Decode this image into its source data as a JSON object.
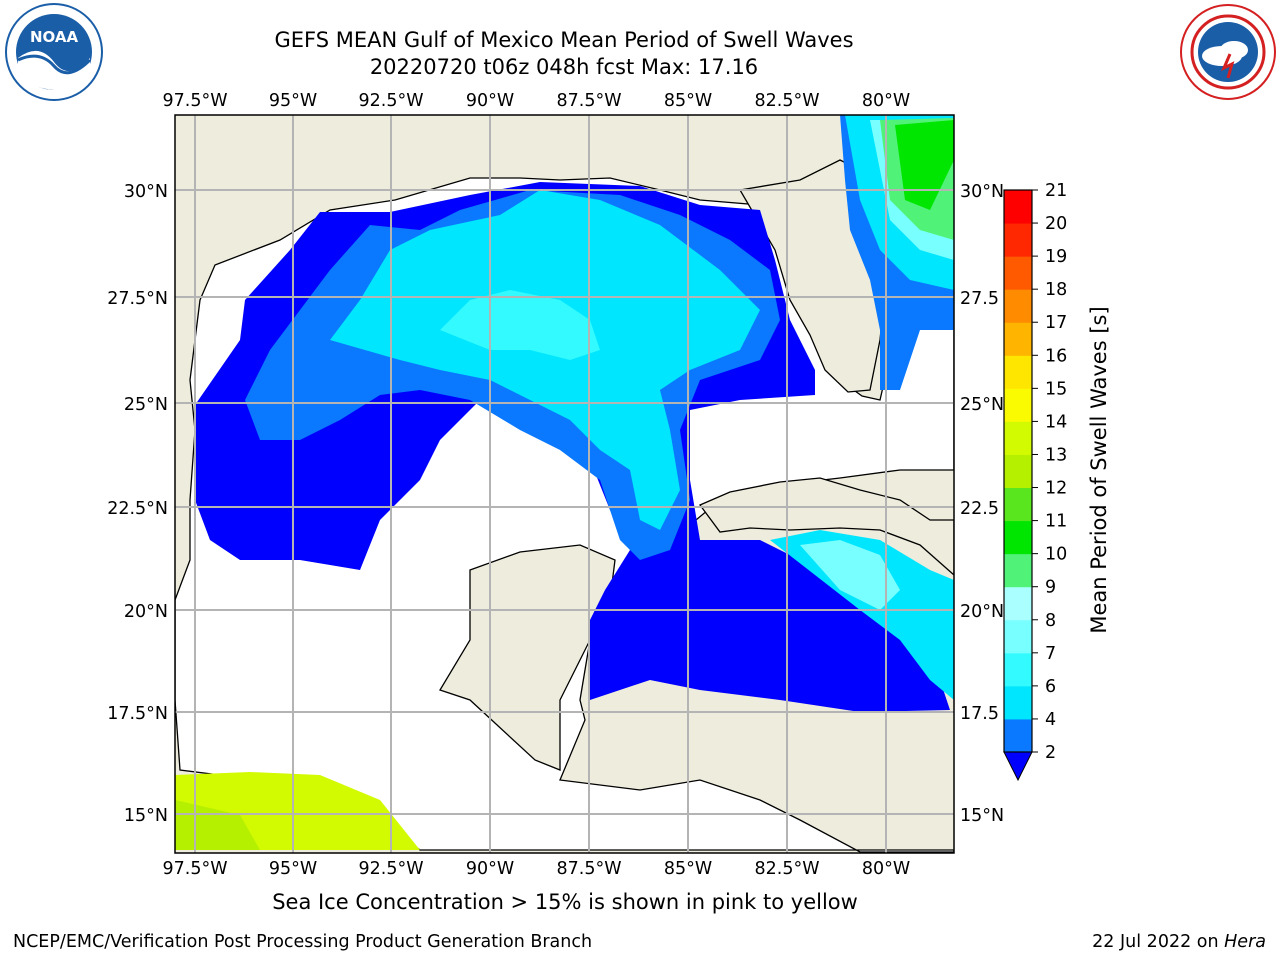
{
  "header": {
    "title": "GEFS MEAN Gulf of Mexico Mean Period of Swell Waves",
    "subtitle": "20220720 t06z 048h fcst   Max: 17.16"
  },
  "logos": {
    "left": {
      "icon": "noaa-logo",
      "text": "NOAA"
    },
    "right": {
      "icon": "national-weather-service-logo"
    }
  },
  "map": {
    "lon_labels_top": [
      "97.5°W",
      "95°W",
      "92.5°W",
      "90°W",
      "87.5°W",
      "85°W",
      "82.5°W",
      "80°W"
    ],
    "lon_labels_bottom": [
      "97.5°W",
      "95°W",
      "92.5°W",
      "90°W",
      "87.5°W",
      "85°W",
      "82.5°W",
      "80°W"
    ],
    "lat_labels_left": [
      "30°N",
      "27.5°N",
      "25°N",
      "22.5°N",
      "20°N",
      "17.5°N",
      "15°N"
    ],
    "lat_labels_right": [
      "30°N",
      "27.5",
      "25°N",
      "22.5",
      "20°N",
      "17.5",
      "15°N"
    ],
    "land_color": "#eeecdc",
    "ocean_missing_color": "#ffffff",
    "grid_color": "#b4b4b4"
  },
  "colorbar": {
    "label": "Mean Period of Swell Waves [s]",
    "ticks": [
      "2",
      "4",
      "6",
      "7",
      "8",
      "9",
      "10",
      "11",
      "12",
      "13",
      "14",
      "15",
      "16",
      "17",
      "18",
      "19",
      "20",
      "21"
    ],
    "colors": [
      "#0000ff",
      "#0a78ff",
      "#00e6ff",
      "#32faff",
      "#78ffff",
      "#aaffff",
      "#50f378",
      "#00e600",
      "#5ae61e",
      "#b4f000",
      "#d2fa00",
      "#fafa00",
      "#ffe600",
      "#ffb400",
      "#ff8c00",
      "#ff5a00",
      "#ff2800",
      "#ff0000"
    ]
  },
  "caption": "Sea Ice Concentration > 15% is shown in pink to yellow",
  "footer": {
    "left": "NCEP/EMC/Verification Post Processing Product Generation Branch",
    "right_date": "22 Jul 2022 on ",
    "right_host": "Hera"
  }
}
